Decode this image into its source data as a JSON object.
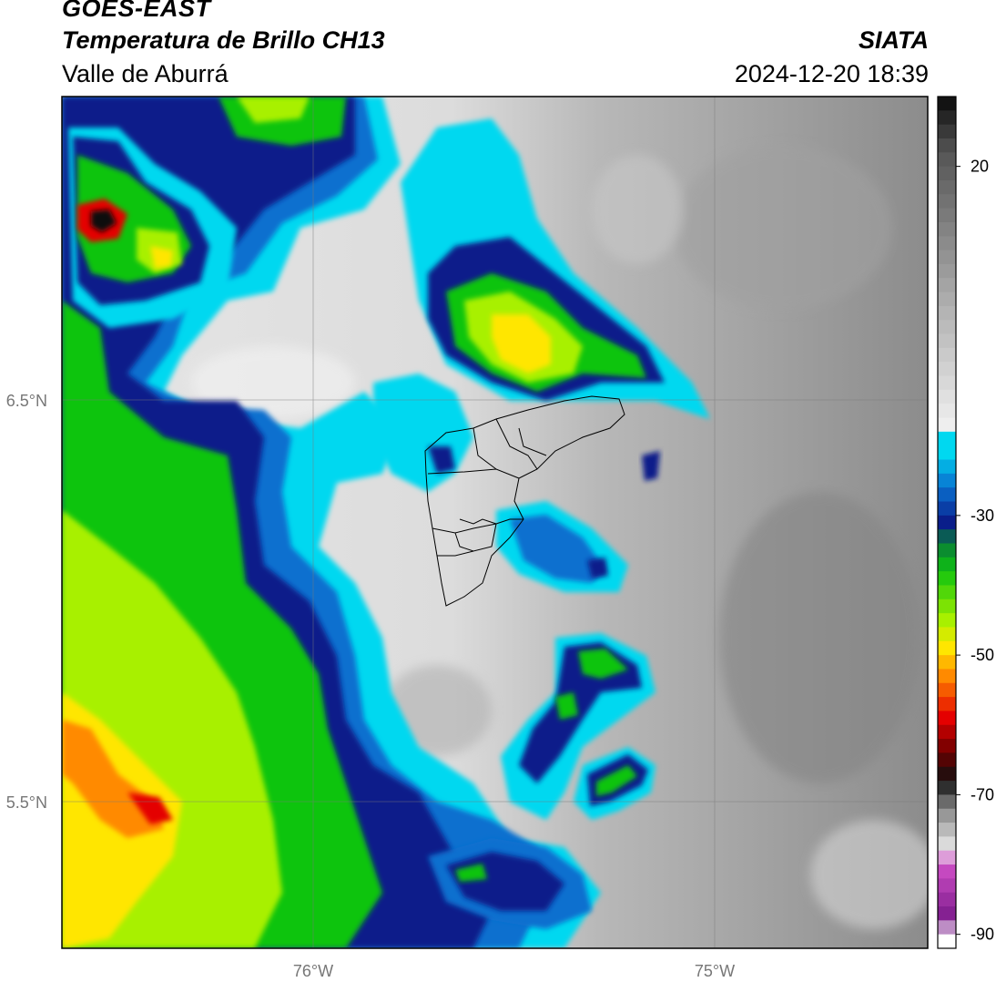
{
  "header": {
    "satellite": "GOES-EAST",
    "product": "Temperatura de Brillo CH13",
    "region": "Valle de Aburrá",
    "organization": "SIATA",
    "datetime": "2024-12-20 18:39"
  },
  "map": {
    "lon_ticks": [
      {
        "value": -76,
        "label": "76°W"
      },
      {
        "value": -75,
        "label": "75°W"
      }
    ],
    "lat_ticks": [
      {
        "value": 6.5,
        "label": "6.5°N"
      },
      {
        "value": 5.5,
        "label": "5.5°N"
      }
    ],
    "extent": {
      "lon_min": -76.625,
      "lon_max": -74.455,
      "lat_min": 5.135,
      "lat_max": 7.26
    }
  },
  "colorbar": {
    "range": [
      -92,
      30
    ],
    "ticks": [
      {
        "value": 20,
        "label": "20"
      },
      {
        "value": -30,
        "label": "-30"
      },
      {
        "value": -50,
        "label": "-50"
      },
      {
        "value": -70,
        "label": "-70"
      },
      {
        "value": -90,
        "label": "-90"
      }
    ],
    "colors": {
      "warm_gray": "#8a8a8a",
      "light_gray": "#ededed",
      "cyan": "#00d8f0",
      "blue": "#0a6fcf",
      "navy": "#0a1e8a",
      "green": "#0fc40f",
      "lime": "#a8f000",
      "yellow": "#ffe600",
      "orange": "#ff8a00",
      "red": "#e40000",
      "black": "#111111",
      "magenta": "#d050c8"
    }
  }
}
